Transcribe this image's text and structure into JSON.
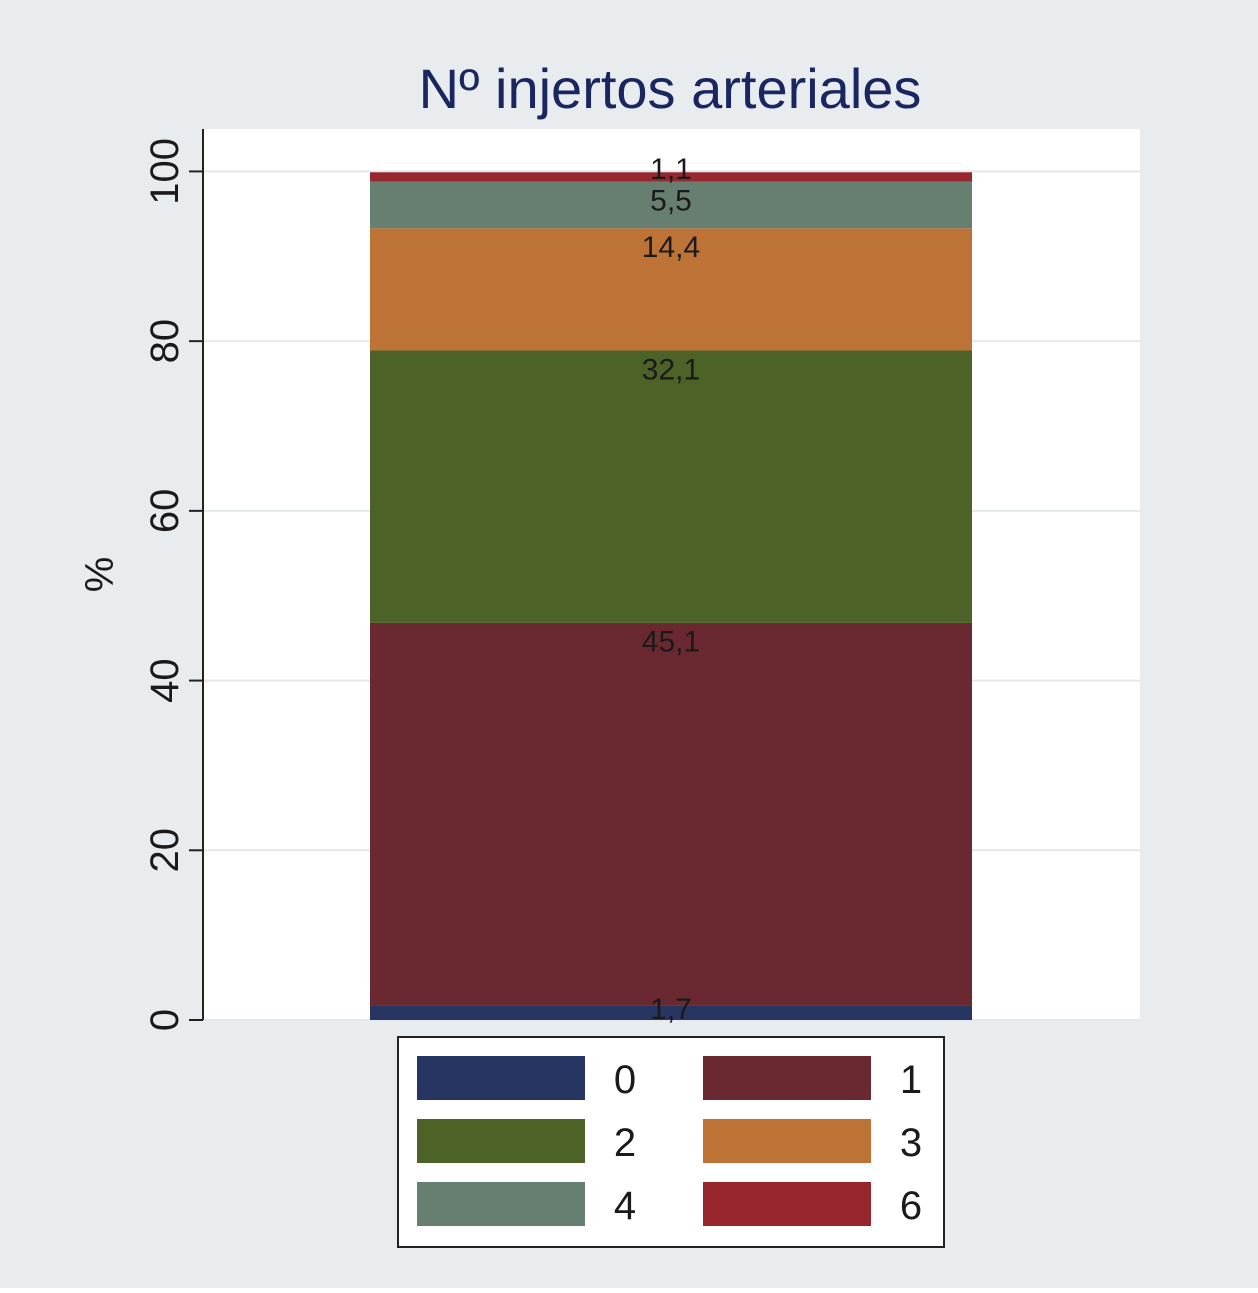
{
  "colors": {
    "outer_background": "#e8ecef",
    "plot_background": "#ffffff",
    "gridline": "#e3e8ec",
    "title": "#1a2660",
    "text": "#1a1a1a",
    "border": "#222222"
  },
  "chart_data": {
    "type": "bar",
    "stacked": true,
    "title": "Nº injertos arteriales",
    "xlabel": "",
    "ylabel": "%",
    "ylim": [
      0,
      105
    ],
    "yticks": [
      0,
      20,
      40,
      60,
      80,
      100
    ],
    "ytick_labels": [
      "0",
      "20",
      "40",
      "60",
      "80",
      "100"
    ],
    "grid": true,
    "legend_position": "bottom",
    "categories": [
      ""
    ],
    "series": [
      {
        "name": "0",
        "values": [
          1.7
        ],
        "label": "1,7",
        "color": "#263562"
      },
      {
        "name": "1",
        "values": [
          45.1
        ],
        "label": "45,1",
        "color": "#6a2930"
      },
      {
        "name": "2",
        "values": [
          32.1
        ],
        "label": "32,1",
        "color": "#4c6226"
      },
      {
        "name": "3",
        "values": [
          14.4
        ],
        "label": "14,4",
        "color": "#bd7236"
      },
      {
        "name": "4",
        "values": [
          5.5
        ],
        "label": "5,5",
        "color": "#677f71"
      },
      {
        "name": "6",
        "values": [
          1.1
        ],
        "label": "1,1",
        "color": "#98262f"
      }
    ],
    "legend_order": [
      "0",
      "1",
      "2",
      "3",
      "4",
      "6"
    ]
  }
}
